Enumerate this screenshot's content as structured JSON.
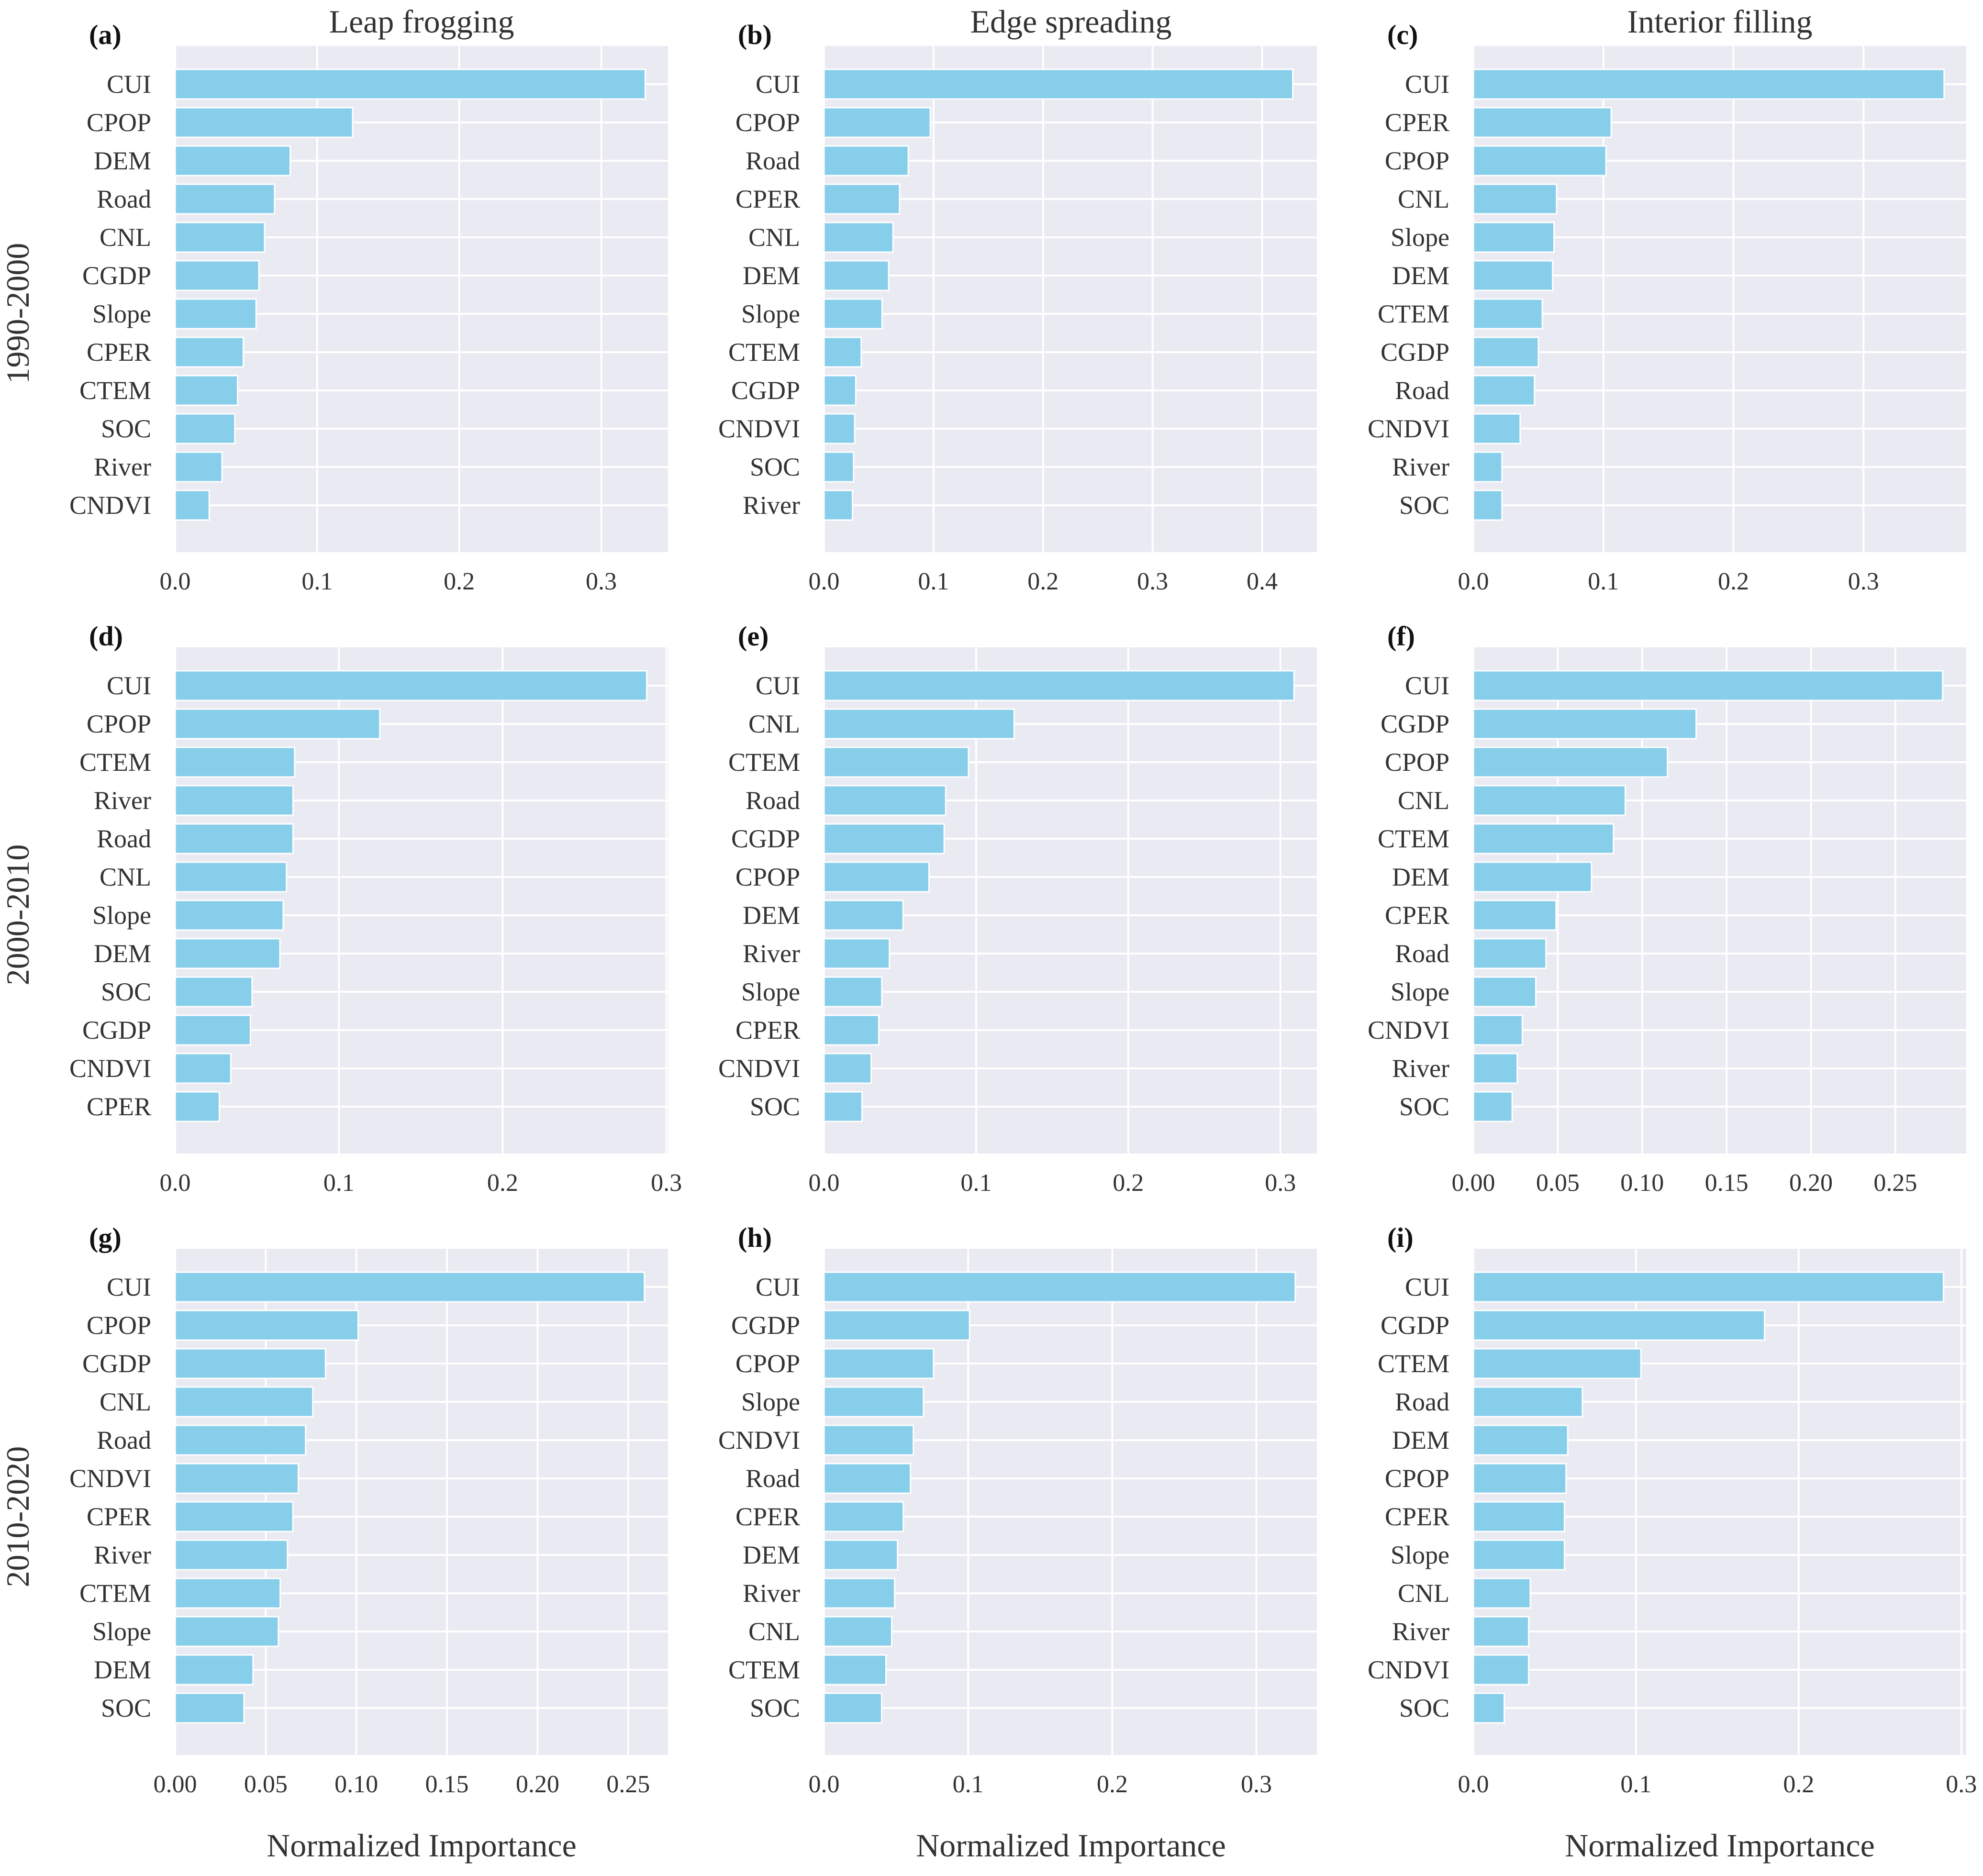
{
  "figure": {
    "column_titles": [
      "Leap frogging",
      "Edge spreading",
      "Interior filling"
    ],
    "row_titles": [
      "1990-2000",
      "2000-2010",
      "2010-2020"
    ],
    "xlabel": "Normalized Importance",
    "bar_color": "#87CEEB",
    "panel_bg": "#EAEAF2",
    "grid_color": "#FFFFFF"
  },
  "chart_data": [
    {
      "type": "bar",
      "panel": "(a)",
      "orientation": "horizontal",
      "categories": [
        "CUI",
        "CPOP",
        "DEM",
        "Road",
        "CNL",
        "CGDP",
        "Slope",
        "CPER",
        "CTEM",
        "SOC",
        "River",
        "CNDVI"
      ],
      "values": [
        0.331,
        0.125,
        0.081,
        0.07,
        0.063,
        0.059,
        0.057,
        0.048,
        0.044,
        0.042,
        0.033,
        0.024
      ],
      "xlim": [
        0,
        0.347
      ],
      "xticks": [
        0,
        0.1,
        0.2,
        0.3
      ],
      "xtick_labels": [
        "0.0",
        "0.1",
        "0.2",
        "0.3"
      ]
    },
    {
      "type": "bar",
      "panel": "(b)",
      "orientation": "horizontal",
      "categories": [
        "CUI",
        "CPOP",
        "Road",
        "CPER",
        "CNL",
        "DEM",
        "Slope",
        "CTEM",
        "CGDP",
        "CNDVI",
        "SOC",
        "River"
      ],
      "values": [
        0.428,
        0.097,
        0.077,
        0.069,
        0.063,
        0.059,
        0.053,
        0.034,
        0.029,
        0.028,
        0.027,
        0.026
      ],
      "xlim": [
        0,
        0.45
      ],
      "xticks": [
        0,
        0.1,
        0.2,
        0.3,
        0.4
      ],
      "xtick_labels": [
        "0.0",
        "0.1",
        "0.2",
        "0.3",
        "0.4"
      ]
    },
    {
      "type": "bar",
      "panel": "(c)",
      "orientation": "horizontal",
      "categories": [
        "CUI",
        "CPER",
        "CPOP",
        "CNL",
        "Slope",
        "DEM",
        "CTEM",
        "CGDP",
        "Road",
        "CNDVI",
        "River",
        "SOC"
      ],
      "values": [
        0.362,
        0.106,
        0.102,
        0.064,
        0.062,
        0.061,
        0.053,
        0.05,
        0.047,
        0.036,
        0.022,
        0.022
      ],
      "xlim": [
        0,
        0.379
      ],
      "xticks": [
        0,
        0.1,
        0.2,
        0.3
      ],
      "xtick_labels": [
        "0.0",
        "0.1",
        "0.2",
        "0.3"
      ]
    },
    {
      "type": "bar",
      "panel": "(d)",
      "orientation": "horizontal",
      "categories": [
        "CUI",
        "CPOP",
        "CTEM",
        "River",
        "Road",
        "CNL",
        "Slope",
        "DEM",
        "SOC",
        "CGDP",
        "CNDVI",
        "CPER"
      ],
      "values": [
        0.288,
        0.125,
        0.073,
        0.072,
        0.072,
        0.068,
        0.066,
        0.064,
        0.047,
        0.046,
        0.034,
        0.027
      ],
      "xlim": [
        0,
        0.301
      ],
      "xticks": [
        0,
        0.1,
        0.2,
        0.3
      ],
      "xtick_labels": [
        "0.0",
        "0.1",
        "0.2",
        "0.3"
      ]
    },
    {
      "type": "bar",
      "panel": "(e)",
      "orientation": "horizontal",
      "categories": [
        "CUI",
        "CNL",
        "CTEM",
        "Road",
        "CGDP",
        "CPOP",
        "DEM",
        "River",
        "Slope",
        "CPER",
        "CNDVI",
        "SOC"
      ],
      "values": [
        0.309,
        0.125,
        0.095,
        0.08,
        0.079,
        0.069,
        0.052,
        0.043,
        0.038,
        0.036,
        0.031,
        0.025
      ],
      "xlim": [
        0,
        0.324
      ],
      "xticks": [
        0,
        0.1,
        0.2,
        0.3
      ],
      "xtick_labels": [
        "0.0",
        "0.1",
        "0.2",
        "0.3"
      ]
    },
    {
      "type": "bar",
      "panel": "(f)",
      "orientation": "horizontal",
      "categories": [
        "CUI",
        "CGDP",
        "CPOP",
        "CNL",
        "CTEM",
        "DEM",
        "CPER",
        "Road",
        "Slope",
        "CNDVI",
        "River",
        "SOC"
      ],
      "values": [
        0.278,
        0.132,
        0.115,
        0.09,
        0.083,
        0.07,
        0.049,
        0.043,
        0.037,
        0.029,
        0.026,
        0.023
      ],
      "xlim": [
        0,
        0.292
      ],
      "xticks": [
        0,
        0.05,
        0.1,
        0.15,
        0.2,
        0.25
      ],
      "xtick_labels": [
        "0.00",
        "0.05",
        "0.10",
        "0.15",
        "0.20",
        "0.25"
      ]
    },
    {
      "type": "bar",
      "panel": "(g)",
      "orientation": "horizontal",
      "categories": [
        "CUI",
        "CPOP",
        "CGDP",
        "CNL",
        "Road",
        "CNDVI",
        "CPER",
        "River",
        "CTEM",
        "Slope",
        "DEM",
        "SOC"
      ],
      "values": [
        0.259,
        0.101,
        0.083,
        0.076,
        0.072,
        0.068,
        0.065,
        0.062,
        0.058,
        0.057,
        0.043,
        0.038
      ],
      "xlim": [
        0,
        0.272
      ],
      "xticks": [
        0,
        0.05,
        0.1,
        0.15,
        0.2,
        0.25
      ],
      "xtick_labels": [
        "0.00",
        "0.05",
        "0.10",
        "0.15",
        "0.20",
        "0.25"
      ]
    },
    {
      "type": "bar",
      "panel": "(h)",
      "orientation": "horizontal",
      "categories": [
        "CUI",
        "CGDP",
        "CPOP",
        "Slope",
        "CNDVI",
        "Road",
        "CPER",
        "DEM",
        "River",
        "CNL",
        "CTEM",
        "SOC"
      ],
      "values": [
        0.327,
        0.101,
        0.076,
        0.069,
        0.062,
        0.06,
        0.055,
        0.051,
        0.049,
        0.047,
        0.043,
        0.04
      ],
      "xlim": [
        0,
        0.342
      ],
      "xticks": [
        0,
        0.1,
        0.2,
        0.3
      ],
      "xtick_labels": [
        "0.0",
        "0.1",
        "0.2",
        "0.3"
      ]
    },
    {
      "type": "bar",
      "panel": "(i)",
      "orientation": "horizontal",
      "categories": [
        "CUI",
        "CGDP",
        "CTEM",
        "Road",
        "DEM",
        "CPOP",
        "CPER",
        "Slope",
        "CNL",
        "River",
        "CNDVI",
        "SOC"
      ],
      "values": [
        0.289,
        0.179,
        0.103,
        0.067,
        0.058,
        0.057,
        0.056,
        0.056,
        0.035,
        0.034,
        0.034,
        0.019
      ],
      "xlim": [
        0,
        0.303
      ],
      "xticks": [
        0,
        0.1,
        0.2,
        0.3
      ],
      "xtick_labels": [
        "0.0",
        "0.1",
        "0.2",
        "0.3"
      ]
    }
  ]
}
